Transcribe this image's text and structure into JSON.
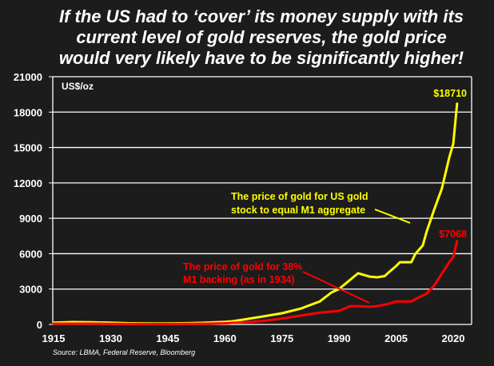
{
  "chart_data": {
    "type": "line",
    "title": [
      "If the US had to ‘cover’ its money supply with its",
      "current level of gold reserves, the gold price",
      "would very likely have to be significantly higher!"
    ],
    "ylabel": "US$/oz",
    "xlabel": "",
    "xlim": [
      1915,
      2024
    ],
    "ylim": [
      0,
      21000
    ],
    "yticks": [
      "0",
      "3000",
      "6000",
      "9000",
      "12000",
      "15000",
      "18000",
      "21000"
    ],
    "ytick_values": [
      0,
      3000,
      6000,
      9000,
      12000,
      15000,
      18000,
      21000
    ],
    "xticks": [
      "1915",
      "1930",
      "1945",
      "1960",
      "1975",
      "1990",
      "2005",
      "2020"
    ],
    "xtick_values": [
      1915,
      1930,
      1945,
      1960,
      1975,
      1990,
      2005,
      2020
    ],
    "grid": true,
    "series": [
      {
        "name": "The price of gold for US gold stock to equal M1 aggregate",
        "color": "#ffff00",
        "end_label": "$18710",
        "x": [
          1915,
          1920,
          1925,
          1930,
          1935,
          1940,
          1945,
          1950,
          1955,
          1960,
          1962,
          1965,
          1970,
          1975,
          1980,
          1985,
          1988,
          1990,
          1993,
          1995,
          1998,
          2000,
          2002,
          2003,
          2005,
          2006,
          2009,
          2010,
          2012,
          2013,
          2015,
          2017,
          2019,
          2020,
          2021
        ],
        "y": [
          150,
          200,
          180,
          150,
          100,
          80,
          90,
          110,
          150,
          220,
          270,
          420,
          680,
          950,
          1350,
          1960,
          2710,
          3000,
          3800,
          4340,
          4060,
          4000,
          4100,
          4400,
          4950,
          5280,
          5280,
          5960,
          6700,
          7860,
          9750,
          11500,
          14200,
          15300,
          18710
        ]
      },
      {
        "name": "The price of gold for 38% M1 backing (as in 1934)",
        "color": "#ff0000",
        "end_label": "$7068",
        "x": [
          1915,
          1920,
          1925,
          1930,
          1935,
          1940,
          1945,
          1950,
          1955,
          1960,
          1965,
          1970,
          1975,
          1980,
          1985,
          1990,
          1993,
          1995,
          1998,
          2000,
          2003,
          2005,
          2009,
          2011,
          2013,
          2015,
          2017,
          2019,
          2020,
          2021
        ],
        "y": [
          60,
          70,
          65,
          55,
          40,
          35,
          35,
          45,
          60,
          100,
          180,
          300,
          500,
          750,
          1000,
          1150,
          1550,
          1550,
          1500,
          1550,
          1750,
          1950,
          1950,
          2300,
          2600,
          3300,
          4300,
          5300,
          5700,
          7068
        ]
      }
    ],
    "annotations": [
      {
        "lines": [
          "The price of gold for US gold",
          "stock  to equal M1 aggregate"
        ],
        "series": 0,
        "points_to_year": 2012
      },
      {
        "lines": [
          "The price of gold for 38%",
          "M1 backing (as in 1934)"
        ],
        "series": 1,
        "points_to_year": 1998
      }
    ],
    "source": "Source: LBMA, Federal Reserve, Bloomberg"
  }
}
